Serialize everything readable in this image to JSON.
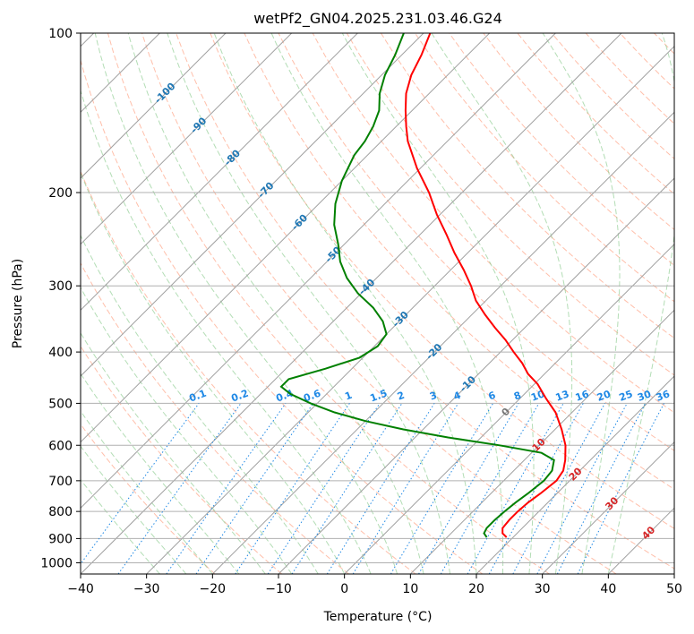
{
  "chart_data": {
    "type": "line",
    "title": "wetPf2_GN04.2025.231.03.46.G24",
    "xlabel": "Temperature (°C)",
    "ylabel": "Pressure (hPa)",
    "xlim": [
      -40,
      50
    ],
    "ylim": [
      1050,
      100
    ],
    "y_scale": "log",
    "grid": true,
    "x_ticks": [
      "−40",
      "−30",
      "−20",
      "−10",
      "0",
      "10",
      "20",
      "30",
      "40",
      "50"
    ],
    "y_ticks": [
      "100",
      "200",
      "300",
      "400",
      "500",
      "600",
      "700",
      "800",
      "900",
      "1000"
    ],
    "y_tick_values": [
      100,
      200,
      300,
      400,
      500,
      600,
      700,
      800,
      900,
      1000
    ],
    "skew_isotherm_labels": [
      "-100",
      "-90",
      "-80",
      "-70",
      "-60",
      "-50",
      "-40",
      "-30",
      "-20",
      "-10",
      "0",
      "10",
      "20",
      "30",
      "40"
    ],
    "skew_isotherm_values": [
      -100,
      -90,
      -80,
      -70,
      -60,
      -50,
      -40,
      -30,
      -20,
      -10,
      0,
      10,
      20,
      30,
      40
    ],
    "mixing_ratio_labels": [
      "0.1",
      "0.2",
      "0.4",
      "0.6",
      "1",
      "1.5",
      "2",
      "3",
      "4",
      "6",
      "8",
      "10",
      "13",
      "16",
      "20",
      "25",
      "30",
      "36"
    ],
    "mixing_ratio_values": [
      0.1,
      0.2,
      0.4,
      0.6,
      1,
      1.5,
      2,
      3,
      4,
      6,
      8,
      10,
      13,
      16,
      20,
      25,
      30,
      36
    ],
    "colors": {
      "temperature": "#ff0000",
      "dewpoint": "#008000",
      "isotherm_label_cold": "#1f77b4",
      "isotherm_label_warm": "#d62728",
      "mixing_ratio": "#1e88e5",
      "dry_adiabat": "#ff8a65",
      "moist_adiabat": "#81c784",
      "isotherm_line": "#a0a0a0",
      "hpa_grid": "#b0b0b0"
    },
    "series": [
      {
        "name": "",
        "kind": "temperature",
        "points": [
          [
            895,
            19.0
          ],
          [
            880,
            17.8
          ],
          [
            860,
            17.0
          ],
          [
            830,
            16.8
          ],
          [
            800,
            16.8
          ],
          [
            770,
            17.0
          ],
          [
            740,
            17.5
          ],
          [
            700,
            18.0
          ],
          [
            670,
            17.5
          ],
          [
            640,
            16.2
          ],
          [
            600,
            14.0
          ],
          [
            560,
            11.0
          ],
          [
            520,
            7.5
          ],
          [
            490,
            4.0
          ],
          [
            460,
            0.5
          ],
          [
            440,
            -2.5
          ],
          [
            420,
            -5.0
          ],
          [
            400,
            -8.0
          ],
          [
            380,
            -11.0
          ],
          [
            360,
            -14.5
          ],
          [
            340,
            -18.0
          ],
          [
            320,
            -21.5
          ],
          [
            300,
            -24.5
          ],
          [
            280,
            -28.0
          ],
          [
            260,
            -32.0
          ],
          [
            240,
            -36.0
          ],
          [
            220,
            -40.5
          ],
          [
            200,
            -45.0
          ],
          [
            180,
            -50.5
          ],
          [
            160,
            -56.0
          ],
          [
            150,
            -58.5
          ],
          [
            140,
            -61.0
          ],
          [
            130,
            -63.5
          ],
          [
            120,
            -65.5
          ],
          [
            110,
            -67.0
          ],
          [
            100,
            -69.0
          ]
        ]
      },
      {
        "name": "",
        "kind": "dewpoint",
        "points": [
          [
            895,
            16.0
          ],
          [
            880,
            15.0
          ],
          [
            860,
            14.6
          ],
          [
            830,
            14.6
          ],
          [
            800,
            14.8
          ],
          [
            770,
            15.1
          ],
          [
            740,
            15.6
          ],
          [
            700,
            16.1
          ],
          [
            670,
            15.8
          ],
          [
            640,
            14.5
          ],
          [
            620,
            11.5
          ],
          [
            600,
            4.0
          ],
          [
            580,
            -5.0
          ],
          [
            560,
            -13.0
          ],
          [
            540,
            -20.0
          ],
          [
            520,
            -26.0
          ],
          [
            500,
            -31.0
          ],
          [
            480,
            -35.5
          ],
          [
            465,
            -38.0
          ],
          [
            450,
            -38.0
          ],
          [
            430,
            -34.0
          ],
          [
            410,
            -30.5
          ],
          [
            390,
            -29.5
          ],
          [
            370,
            -30.0
          ],
          [
            350,
            -32.5
          ],
          [
            330,
            -36.0
          ],
          [
            310,
            -40.5
          ],
          [
            290,
            -44.5
          ],
          [
            270,
            -48.0
          ],
          [
            250,
            -51.0
          ],
          [
            230,
            -54.5
          ],
          [
            210,
            -57.5
          ],
          [
            190,
            -60.0
          ],
          [
            170,
            -62.0
          ],
          [
            160,
            -62.5
          ],
          [
            150,
            -63.5
          ],
          [
            140,
            -65.0
          ],
          [
            130,
            -67.5
          ],
          [
            120,
            -69.5
          ],
          [
            110,
            -71.0
          ],
          [
            100,
            -73.0
          ]
        ]
      }
    ]
  }
}
